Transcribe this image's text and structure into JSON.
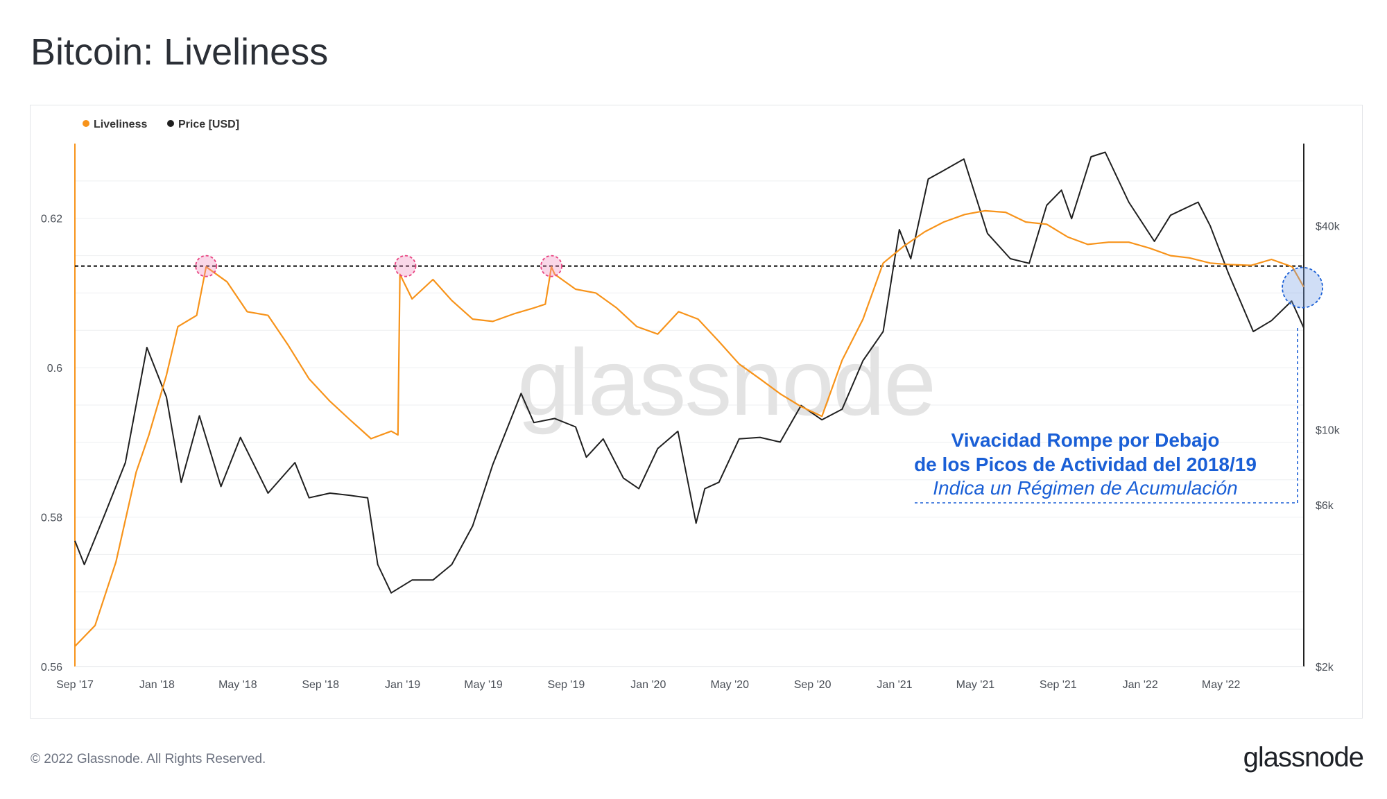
{
  "page": {
    "title": "Bitcoin: Liveliness",
    "footer_copyright": "© 2022 Glassnode. All Rights Reserved.",
    "footer_logo": "glassnode",
    "watermark": "glassnode"
  },
  "chart_data": {
    "type": "line",
    "title": "Bitcoin: Liveliness",
    "legend": {
      "placement": "top-left",
      "items": [
        {
          "name": "Liveliness",
          "color": "#f7931a"
        },
        {
          "name": "Price [USD]",
          "color": "#1f1f1f"
        }
      ]
    },
    "x_tick_labels": [
      "Sep '17",
      "Jan '18",
      "May '18",
      "Sep '18",
      "Jan '19",
      "May '19",
      "Sep '19",
      "Jan '20",
      "May '20",
      "Sep '20",
      "Jan '21",
      "May '21",
      "Sep '21",
      "Jan '22",
      "May '22"
    ],
    "x_range": [
      "2017-09",
      "2022-09"
    ],
    "y_left": {
      "ticks": [
        "0.56",
        "0.58",
        "0.6",
        "0.62"
      ],
      "range": [
        0.56,
        0.63
      ]
    },
    "y_right": {
      "scale": "log",
      "ticks": [
        "$2k",
        "$6k",
        "$10k",
        "$40k"
      ],
      "range": [
        2000,
        70000
      ]
    },
    "grid": true,
    "series": [
      {
        "name": "Liveliness",
        "axis": "left",
        "color": "#f7931a",
        "x": [
          "2017-09-01",
          "2017-10-01",
          "2017-11-01",
          "2017-12-01",
          "2017-12-20",
          "2018-01-15",
          "2018-02-01",
          "2018-03-01",
          "2018-03-15",
          "2018-04-15",
          "2018-05-15",
          "2018-06-15",
          "2018-07-15",
          "2018-08-15",
          "2018-09-15",
          "2018-10-15",
          "2018-11-15",
          "2018-12-15",
          "2018-12-25",
          "2018-12-28",
          "2019-01-15",
          "2019-02-15",
          "2019-03-15",
          "2019-04-15",
          "2019-05-15",
          "2019-06-15",
          "2019-07-15",
          "2019-08-01",
          "2019-08-10",
          "2019-08-15",
          "2019-09-15",
          "2019-10-15",
          "2019-11-15",
          "2019-12-15",
          "2020-01-15",
          "2020-02-15",
          "2020-03-15",
          "2020-04-15",
          "2020-05-15",
          "2020-06-15",
          "2020-07-15",
          "2020-08-15",
          "2020-09-15",
          "2020-10-15",
          "2020-11-15",
          "2020-12-15",
          "2021-01-15",
          "2021-02-15",
          "2021-03-15",
          "2021-04-15",
          "2021-05-15",
          "2021-06-15",
          "2021-07-15",
          "2021-08-15",
          "2021-09-15",
          "2021-10-15",
          "2021-11-15",
          "2021-12-15",
          "2022-01-15",
          "2022-02-15",
          "2022-03-15",
          "2022-04-15",
          "2022-05-15",
          "2022-06-15",
          "2022-07-15",
          "2022-08-15",
          "2022-09-01"
        ],
        "y": [
          0.5627,
          0.5655,
          0.574,
          0.586,
          0.591,
          0.599,
          0.6055,
          0.607,
          0.6135,
          0.6115,
          0.6075,
          0.607,
          0.603,
          0.5985,
          0.5955,
          0.593,
          0.5905,
          0.5915,
          0.591,
          0.6125,
          0.6092,
          0.6118,
          0.609,
          0.6065,
          0.6062,
          0.6072,
          0.608,
          0.6085,
          0.6135,
          0.6125,
          0.6105,
          0.61,
          0.608,
          0.6055,
          0.6045,
          0.6075,
          0.6065,
          0.6035,
          0.6005,
          0.5985,
          0.5965,
          0.5948,
          0.5935,
          0.601,
          0.6065,
          0.614,
          0.6163,
          0.6182,
          0.6195,
          0.6205,
          0.621,
          0.6208,
          0.6195,
          0.6192,
          0.6175,
          0.6165,
          0.6168,
          0.6168,
          0.616,
          0.615,
          0.6147,
          0.614,
          0.6138,
          0.6137,
          0.6145,
          0.6135,
          0.6108
        ]
      },
      {
        "name": "Price [USD]",
        "axis": "right",
        "color": "#1f1f1f",
        "x": [
          "2017-09-01",
          "2017-09-15",
          "2017-10-15",
          "2017-11-15",
          "2017-12-17",
          "2018-01-15",
          "2018-02-06",
          "2018-03-05",
          "2018-04-06",
          "2018-05-05",
          "2018-06-15",
          "2018-07-25",
          "2018-08-15",
          "2018-09-15",
          "2018-10-15",
          "2018-11-10",
          "2018-11-25",
          "2018-12-15",
          "2019-01-15",
          "2019-02-15",
          "2019-03-15",
          "2019-04-15",
          "2019-05-15",
          "2019-06-26",
          "2019-07-15",
          "2019-08-15",
          "2019-09-15",
          "2019-10-01",
          "2019-10-26",
          "2019-11-25",
          "2019-12-18",
          "2020-01-15",
          "2020-02-14",
          "2020-03-12",
          "2020-03-25",
          "2020-04-15",
          "2020-05-15",
          "2020-06-15",
          "2020-07-15",
          "2020-08-15",
          "2020-09-15",
          "2020-10-15",
          "2020-11-15",
          "2020-12-15",
          "2021-01-08",
          "2021-01-25",
          "2021-02-20",
          "2021-03-13",
          "2021-04-14",
          "2021-05-19",
          "2021-06-22",
          "2021-07-20",
          "2021-08-15",
          "2021-09-06",
          "2021-09-21",
          "2021-10-20",
          "2021-11-10",
          "2021-12-15",
          "2022-01-22",
          "2022-02-15",
          "2022-03-28",
          "2022-04-15",
          "2022-05-12",
          "2022-06-18",
          "2022-07-15",
          "2022-08-14",
          "2022-09-01"
        ],
        "y": [
          4700,
          4000,
          5600,
          8000,
          17500,
          12500,
          7000,
          11000,
          6800,
          9500,
          6500,
          8000,
          6300,
          6500,
          6400,
          6300,
          4000,
          3300,
          3600,
          3600,
          4000,
          5200,
          7900,
          12800,
          10500,
          10800,
          10200,
          8300,
          9400,
          7200,
          6700,
          8800,
          9900,
          5300,
          6700,
          7000,
          9400,
          9500,
          9200,
          11800,
          10700,
          11500,
          16000,
          19500,
          39000,
          32000,
          55000,
          58000,
          63000,
          38000,
          32000,
          31000,
          46000,
          51000,
          42000,
          64000,
          66000,
          47000,
          36000,
          43000,
          47000,
          40000,
          29000,
          19500,
          21000,
          24000,
          20000
        ]
      }
    ],
    "reference_line": {
      "axis": "left",
      "y": 0.6136,
      "style": "dashed",
      "color": "#000000"
    },
    "highlights": [
      {
        "x": "2018-03-15",
        "y": 0.6136,
        "color": "#e8417f"
      },
      {
        "x": "2019-01-05",
        "y": 0.6136,
        "color": "#e8417f"
      },
      {
        "x": "2019-08-10",
        "y": 0.6136,
        "color": "#e8417f"
      },
      {
        "x": "2022-08-30",
        "y": 0.611,
        "color": "#1a5fd6"
      }
    ],
    "annotation": {
      "line1": "Vivacidad Rompe por Debajo",
      "line2": "de los Picos de Actividad del 2018/19",
      "line3": "Indica un Régimen de Acumulación",
      "color": "#1a5fd6"
    }
  }
}
